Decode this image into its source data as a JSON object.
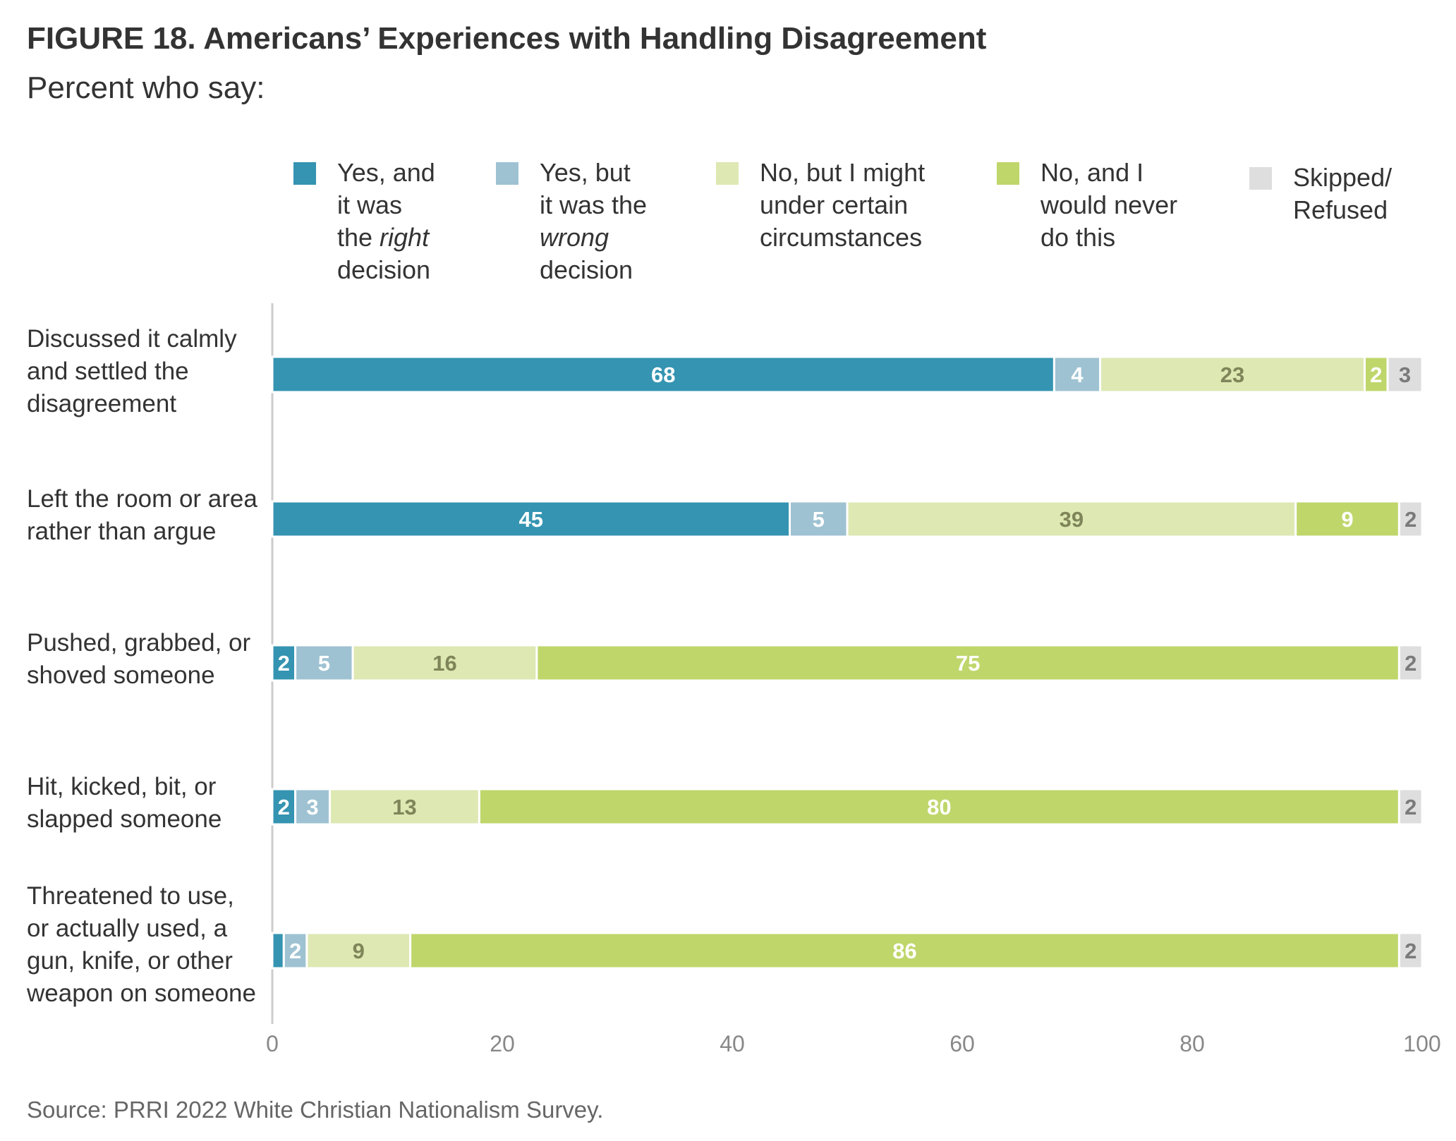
{
  "title": "FIGURE 18.  Americans’ Experiences with Handling Disagreement",
  "subtitle": "Percent who say:",
  "source": "Source: PRRI 2022 White Christian Nationalism Survey.",
  "legend": [
    {
      "lines": [
        "Yes, and",
        "it was",
        "the |right|",
        "decision"
      ],
      "color": "#3494b1"
    },
    {
      "lines": [
        "Yes, but",
        "it was the",
        "|wrong|",
        "decision"
      ],
      "color": "#9ec2d2"
    },
    {
      "lines": [
        "No, but I might",
        "under certain",
        "circumstances"
      ],
      "color": "#dde8b3"
    },
    {
      "lines": [
        "No, and I",
        "would never",
        "do this"
      ],
      "color": "#bfd66b"
    },
    {
      "lines": [
        "Skipped/",
        "Refused"
      ],
      "color": "#dddedd"
    }
  ],
  "chart_data": {
    "type": "bar",
    "orientation": "horizontal",
    "stacked": true,
    "title": "FIGURE 18.  Americans’ Experiences with Handling Disagreement",
    "subtitle": "Percent who say:",
    "categories": [
      "Discussed it calmly and settled the disagreement",
      "Left the room or area rather than argue",
      "Pushed, grabbed, or shoved someone",
      "Hit, kicked, bit, or slapped someone",
      "Threatened to use, or actually used, a gun, knife, or other weapon on someone"
    ],
    "category_lines": [
      [
        "Discussed it calmly",
        "and settled the",
        "disagreement"
      ],
      [
        "Left the room or area",
        "rather than argue"
      ],
      [
        "Pushed, grabbed, or",
        "shoved someone"
      ],
      [
        "Hit, kicked, bit, or",
        "slapped someone"
      ],
      [
        "Threatened to use,",
        "or actually used, a",
        "gun, knife, or other",
        "weapon on someone"
      ]
    ],
    "series": [
      {
        "name": "Yes, and it was the right decision",
        "color": "#3494b1",
        "label_color": "#ffffff",
        "values": [
          68,
          45,
          2,
          2,
          1
        ],
        "labels": [
          "68",
          "45",
          "2",
          "2",
          ""
        ]
      },
      {
        "name": "Yes, but it was the wrong decision",
        "color": "#9ec2d2",
        "label_color": "#ffffff",
        "values": [
          4,
          5,
          5,
          3,
          2
        ],
        "labels": [
          "4",
          "5",
          "5",
          "3",
          "2"
        ]
      },
      {
        "name": "No, but I might under certain circumstances",
        "color": "#dde8b3",
        "label_color": "#7f8559",
        "values": [
          23,
          39,
          16,
          13,
          9
        ],
        "labels": [
          "23",
          "39",
          "16",
          "13",
          "9"
        ]
      },
      {
        "name": "No, and I would never do this",
        "color": "#bfd66b",
        "label_color": "#ffffff",
        "values": [
          2,
          9,
          75,
          80,
          86
        ],
        "labels": [
          "2",
          "9",
          "75",
          "80",
          "86"
        ]
      },
      {
        "name": "Skipped/Refused",
        "color": "#dddedd",
        "label_color": "#7a7a7a",
        "values": [
          3,
          2,
          2,
          2,
          2
        ],
        "labels": [
          "3",
          "2",
          "2",
          "2",
          "2"
        ]
      }
    ],
    "xlim": [
      0,
      100
    ],
    "xticks": [
      0,
      20,
      40,
      60,
      80,
      100
    ],
    "xlabel": "",
    "ylabel": "",
    "grid": false,
    "legend_position": "top"
  }
}
